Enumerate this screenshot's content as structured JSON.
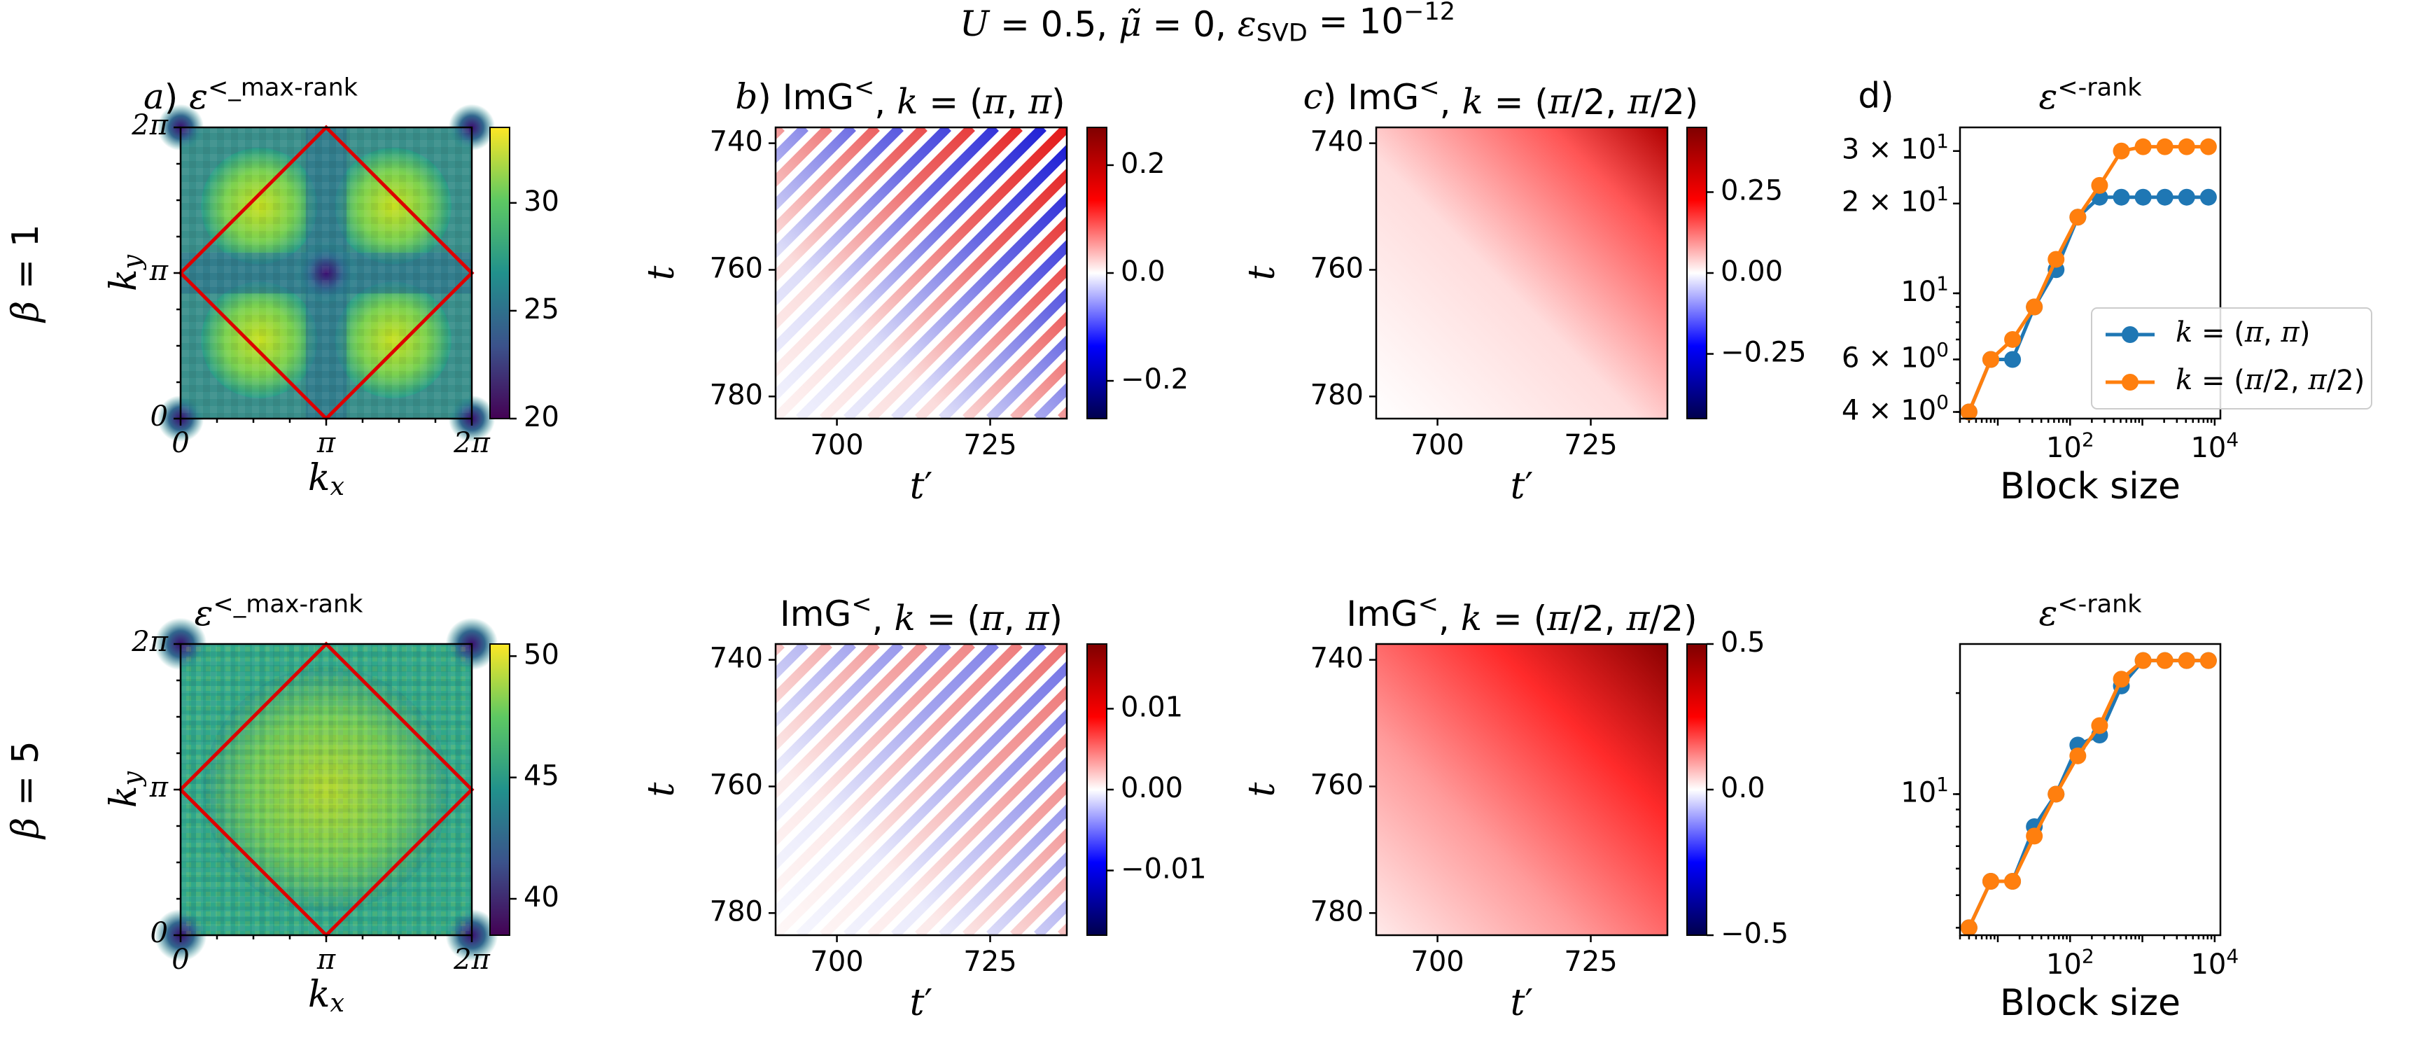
{
  "figure": {
    "suptitle": "U = 0.5, μ̃ = 0, ε_SVD = 10^−12",
    "row_labels": [
      "β = 1",
      "β = 5"
    ]
  },
  "colors": {
    "series_pipi": "#1f77b4",
    "series_pi2": "#ff7f0e",
    "diamond": "#dd0000",
    "viridis": [
      "#440154",
      "#3b528b",
      "#21918c",
      "#5ec962",
      "#fde725"
    ],
    "seismic_neg": "#00004c",
    "seismic_pos": "#7f0000"
  },
  "chart_data": [
    {
      "id": "a1",
      "type": "heatmap",
      "panel": "a)",
      "title": "ε^<_max-rank",
      "xlabel": "k_x",
      "ylabel": "k_y",
      "xticks": [
        "0",
        "π",
        "2π"
      ],
      "yticks": [
        "0",
        "π",
        "2π"
      ],
      "xlim": [
        0,
        6.283
      ],
      "ylim": [
        0,
        6.283
      ],
      "colorbar": {
        "min": 20,
        "max": 33.5,
        "ticks": [
          20,
          25,
          30
        ],
        "cmap": "viridis"
      },
      "overlay": "red diamond connecting (π,0), (2π,π), (π,2π), (0,π)"
    },
    {
      "id": "b1",
      "type": "heatmap",
      "panel": "b)",
      "title": "ImG^<, k = (π, π)",
      "xlabel": "t′",
      "ylabel": "t",
      "xticks": [
        700,
        725
      ],
      "yticks": [
        740,
        760,
        780
      ],
      "xlim": [
        690,
        737.5
      ],
      "ylim": [
        783.5,
        737.5
      ],
      "colorbar": {
        "min": -0.27,
        "max": 0.27,
        "ticks": [
          -0.2,
          0.0,
          0.2
        ],
        "cmap": "seismic"
      },
      "pattern": "oscillating diagonal stripes, strongest at upper-right"
    },
    {
      "id": "c1",
      "type": "heatmap",
      "panel": "c)",
      "title": "ImG^<, k = (π/2, π/2)",
      "xlabel": "t′",
      "ylabel": "t",
      "xticks": [
        700,
        725
      ],
      "yticks": [
        740,
        760,
        780
      ],
      "xlim": [
        690,
        737.5
      ],
      "ylim": [
        783.5,
        737.5
      ],
      "colorbar": {
        "min": -0.45,
        "max": 0.45,
        "ticks": [
          -0.25,
          0.0,
          0.25
        ],
        "cmap": "seismic"
      },
      "pattern": "smooth positive gradient toward upper-right corner"
    },
    {
      "id": "d1",
      "type": "line",
      "panel": "d)",
      "title": "ε^<-rank",
      "xlabel": "Block size",
      "ylabel": "",
      "xscale": "log",
      "yscale": "log",
      "xlim": [
        3,
        12000
      ],
      "ylim": [
        3.8,
        36
      ],
      "xticks": [
        "10^2",
        "10^4"
      ],
      "yticks": [
        "4 × 10^0",
        "6 × 10^0",
        "10^1",
        "2 × 10^1",
        "3 × 10^1"
      ],
      "legend": {
        "position": "center-right",
        "entries": [
          "k = (π, π)",
          "k = (π/2, π/2)"
        ]
      },
      "x": [
        4,
        8,
        16,
        32,
        64,
        128,
        256,
        512,
        1024,
        2048,
        4096,
        8192
      ],
      "series": [
        {
          "name": "k = (π, π)",
          "values": [
            4,
            6,
            6,
            9,
            12,
            18,
            21,
            21,
            21,
            21,
            21,
            21
          ]
        },
        {
          "name": "k = (π/2, π/2)",
          "values": [
            4,
            6,
            7,
            9,
            13,
            18,
            23,
            30,
            31,
            31,
            31,
            31
          ]
        }
      ]
    },
    {
      "id": "a2",
      "type": "heatmap",
      "panel": "",
      "title": "ε^<_max-rank",
      "xlabel": "k_x",
      "ylabel": "k_y",
      "xticks": [
        "0",
        "π",
        "2π"
      ],
      "yticks": [
        "0",
        "π",
        "2π"
      ],
      "xlim": [
        0,
        6.283
      ],
      "ylim": [
        0,
        6.283
      ],
      "colorbar": {
        "min": 38.5,
        "max": 50.5,
        "ticks": [
          40,
          45,
          50
        ],
        "cmap": "viridis"
      },
      "overlay": "red diamond connecting (π,0), (2π,π), (π,2π), (0,π)"
    },
    {
      "id": "b2",
      "type": "heatmap",
      "panel": "",
      "title": "ImG^<, k = (π, π)",
      "xlabel": "t′",
      "ylabel": "t",
      "xticks": [
        700,
        725
      ],
      "yticks": [
        740,
        760,
        780
      ],
      "xlim": [
        690,
        737.5
      ],
      "ylim": [
        783.5,
        737.5
      ],
      "colorbar": {
        "min": -0.018,
        "max": 0.018,
        "ticks": [
          -0.01,
          0.0,
          0.01
        ],
        "cmap": "seismic"
      },
      "pattern": "faint oscillating diagonal stripes"
    },
    {
      "id": "c2",
      "type": "heatmap",
      "panel": "",
      "title": "ImG^<, k = (π/2, π/2)",
      "xlabel": "t′",
      "ylabel": "t",
      "xticks": [
        700,
        725
      ],
      "yticks": [
        740,
        760,
        780
      ],
      "xlim": [
        690,
        737.5
      ],
      "ylim": [
        783.5,
        737.5
      ],
      "colorbar": {
        "min": -0.5,
        "max": 0.5,
        "ticks": [
          -0.5,
          0.0,
          0.5
        ],
        "cmap": "seismic"
      },
      "pattern": "strong positive gradient toward upper-right corner"
    },
    {
      "id": "d2",
      "type": "line",
      "panel": "",
      "title": "ε^<-rank",
      "xlabel": "Block size",
      "ylabel": "",
      "xscale": "log",
      "yscale": "log",
      "xlim": [
        3,
        12000
      ],
      "ylim": [
        3.8,
        28
      ],
      "xticks": [
        "10^2",
        "10^4"
      ],
      "yticks": [
        "10^1"
      ],
      "x": [
        4,
        8,
        16,
        32,
        64,
        128,
        256,
        512,
        1024,
        2048,
        4096,
        8192
      ],
      "series": [
        {
          "name": "k = (π, π)",
          "values": [
            4,
            5.5,
            5.5,
            8,
            10,
            14,
            15,
            21,
            25,
            25,
            25,
            25
          ]
        },
        {
          "name": "k = (π/2, π/2)",
          "values": [
            4,
            5.5,
            5.5,
            7.5,
            10,
            13,
            16,
            22,
            25,
            25,
            25,
            25
          ]
        }
      ]
    }
  ]
}
